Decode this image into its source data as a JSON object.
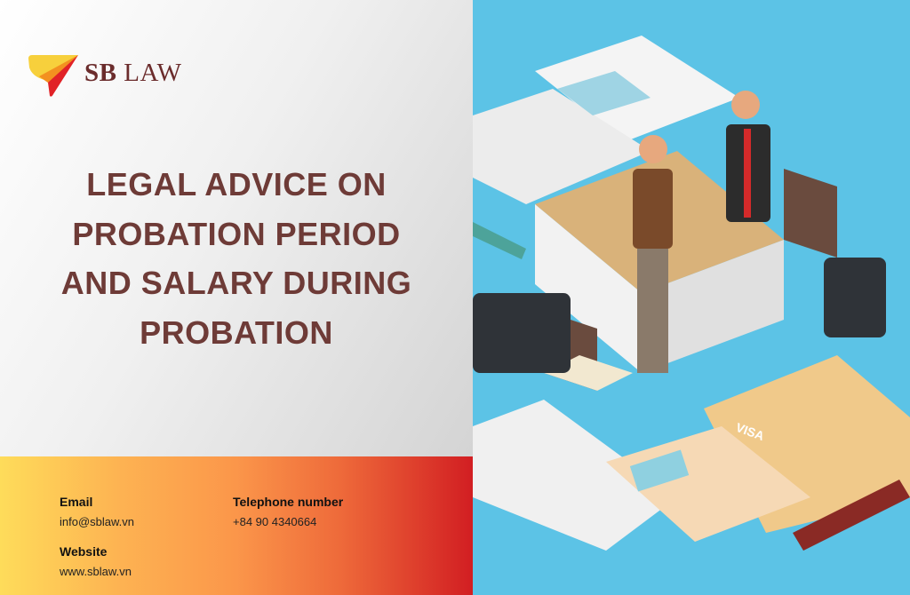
{
  "brand": {
    "name_bold": "SB",
    "name_rest": "LAW",
    "colors": [
      "#f7d03c",
      "#f39120",
      "#e12227"
    ]
  },
  "title": {
    "lines": [
      "LEGAL ADVICE ON",
      "PROBATION PERIOD",
      "AND SALARY DURING",
      "PROBATION"
    ],
    "color": "#6e3b37"
  },
  "contact": {
    "email_label": "Email",
    "email_value": "info@sblaw.vn",
    "phone_label": "Telephone number",
    "phone_value": "+84 90 4340664",
    "website_label": "Website",
    "website_value": "www.sblaw.vn"
  },
  "illustration": {
    "subject": "handshake-office-illustration",
    "card_text": "VISA",
    "background": "#5cc3e6"
  }
}
